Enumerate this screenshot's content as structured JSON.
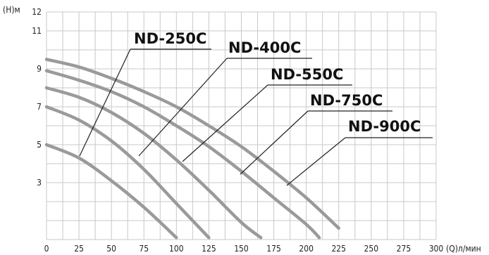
{
  "chart_data": {
    "type": "line",
    "title": "",
    "xlabel": "(Q)л/мин",
    "ylabel": "(Н)м",
    "xlim": [
      0,
      300
    ],
    "ylim": [
      0,
      12
    ],
    "x_ticks": [
      "0",
      "25",
      "50",
      "75",
      "100",
      "125",
      "150",
      "175",
      "200",
      "225",
      "250",
      "275",
      "300"
    ],
    "y_ticks": [
      "3",
      "5",
      "7",
      "9",
      "11",
      "12"
    ],
    "grid": true,
    "series": [
      {
        "name": "ND-250C",
        "x": [
          0,
          25,
          50,
          75,
          100
        ],
        "y": [
          5.0,
          4.3,
          3.1,
          1.7,
          0.1
        ]
      },
      {
        "name": "ND-400C",
        "x": [
          0,
          25,
          50,
          75,
          100,
          125
        ],
        "y": [
          7.0,
          6.3,
          5.2,
          3.7,
          1.9,
          0.1
        ]
      },
      {
        "name": "ND-550C",
        "x": [
          0,
          25,
          50,
          75,
          100,
          125,
          150,
          165
        ],
        "y": [
          8.0,
          7.5,
          6.7,
          5.6,
          4.2,
          2.6,
          0.9,
          0.1
        ]
      },
      {
        "name": "ND-750C",
        "x": [
          0,
          25,
          50,
          75,
          100,
          125,
          150,
          175,
          200,
          210
        ],
        "y": [
          8.9,
          8.4,
          7.8,
          7.0,
          6.0,
          4.9,
          3.6,
          2.2,
          0.8,
          0.1
        ]
      },
      {
        "name": "ND-900C",
        "x": [
          0,
          25,
          50,
          75,
          100,
          125,
          150,
          175,
          200,
          225
        ],
        "y": [
          9.5,
          9.1,
          8.5,
          7.8,
          7.0,
          6.0,
          4.9,
          3.6,
          2.2,
          0.6
        ]
      }
    ]
  }
}
